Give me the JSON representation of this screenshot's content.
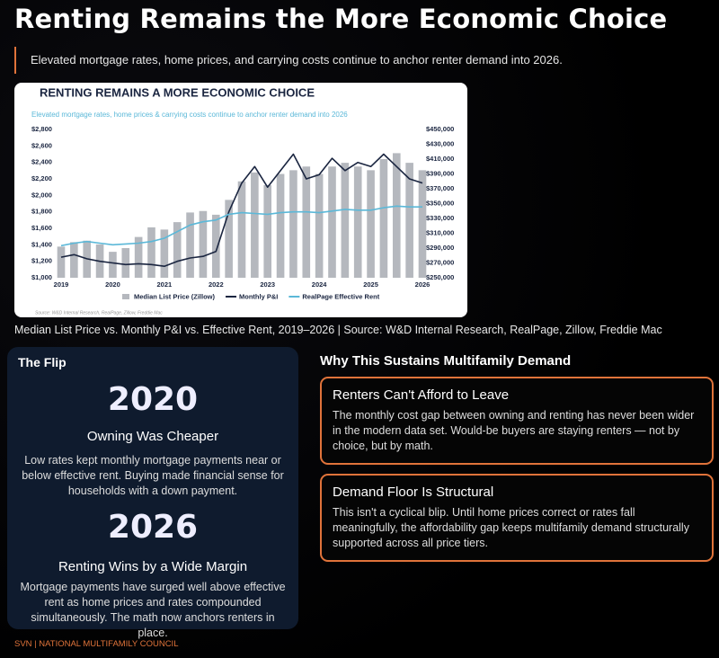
{
  "header": {
    "title": "Renting Remains the More Economic Choice",
    "subtitle": "Elevated mortgage rates, home prices, and carrying costs continue to anchor renter demand into 2026."
  },
  "chart_data": {
    "type": "bar",
    "title": "RENTING REMAINS A MORE ECONOMIC CHOICE",
    "subtitle": "Elevated mortgage rates, home prices & carrying costs continue to anchor renter demand into 2026",
    "source": "Source: W&D Internal Research, RealPage, Zillow, Freddie Mac",
    "categories": [
      "2019",
      null,
      null,
      null,
      "2020",
      null,
      null,
      null,
      "2021",
      null,
      null,
      null,
      "2022",
      null,
      null,
      null,
      "2023",
      null,
      null,
      null,
      "2024",
      null,
      null,
      null,
      "2025",
      null,
      null,
      null,
      "2026"
    ],
    "series": [
      {
        "name": "Median List Price (Zillow)",
        "color": "#b5b8be",
        "axis": "y2",
        "values": [
          292000,
          298000,
          300000,
          295000,
          285000,
          290000,
          305000,
          318000,
          315000,
          325000,
          338000,
          340000,
          335000,
          355000,
          380000,
          392000,
          375000,
          390000,
          395000,
          400000,
          390000,
          400000,
          405000,
          400000,
          395000,
          410000,
          418000,
          405000,
          395000
        ]
      },
      {
        "name": "Monthly P&I",
        "color": "#1a2540",
        "values": [
          1250,
          1280,
          1230,
          1200,
          1180,
          1160,
          1170,
          1160,
          1140,
          1200,
          1240,
          1260,
          1320,
          1800,
          2150,
          2350,
          2100,
          2300,
          2500,
          2200,
          2250,
          2450,
          2300,
          2400,
          2350,
          2500,
          2350,
          2200,
          2150
        ]
      },
      {
        "name": "RealPage Effective Rent",
        "color": "#5bb8d8",
        "values": [
          1390,
          1420,
          1440,
          1420,
          1400,
          1410,
          1420,
          1440,
          1480,
          1560,
          1640,
          1680,
          1700,
          1770,
          1790,
          1780,
          1770,
          1790,
          1800,
          1800,
          1790,
          1810,
          1830,
          1820,
          1820,
          1850,
          1870,
          1860,
          1860
        ]
      }
    ],
    "ylim": [
      1000,
      2800
    ],
    "yticks": [
      {
        "value": 1000,
        "label": "$1,000"
      },
      {
        "value": 1200,
        "label": "$1,200"
      },
      {
        "value": 1400,
        "label": "$1,400"
      },
      {
        "value": 1600,
        "label": "$1,600"
      },
      {
        "value": 1800,
        "label": "$1,800"
      },
      {
        "value": 2000,
        "label": "$2,000"
      },
      {
        "value": 2200,
        "label": "$2,200"
      },
      {
        "value": 2400,
        "label": "$2,400"
      },
      {
        "value": 2600,
        "label": "$2,600"
      },
      {
        "value": 2800,
        "label": "$2,800"
      }
    ],
    "y2lim": [
      250000,
      450000
    ],
    "y2ticks": [
      {
        "value": 250000,
        "label": "$250,000"
      },
      {
        "value": 270000,
        "label": "$270,000"
      },
      {
        "value": 290000,
        "label": "$290,000"
      },
      {
        "value": 310000,
        "label": "$310,000"
      },
      {
        "value": 330000,
        "label": "$330,000"
      },
      {
        "value": 350000,
        "label": "$350,000"
      },
      {
        "value": 370000,
        "label": "$370,000"
      },
      {
        "value": 390000,
        "label": "$390,000"
      },
      {
        "value": 410000,
        "label": "$410,000"
      },
      {
        "value": 430000,
        "label": "$430,000"
      },
      {
        "value": 450000,
        "label": "$450,000"
      }
    ],
    "legend": "bottom"
  },
  "caption": "Median List Price vs. Monthly P&I vs. Effective Rent, 2019–2026 | Source: W&D Internal Research, RealPage, Zillow, Freddie Mac",
  "flip": {
    "title": "The Flip",
    "items": [
      {
        "year": "2020",
        "heading": "Owning Was Cheaper",
        "body": "Low rates kept monthly mortgage payments near or below effective rent. Buying made financial sense for households with a down payment."
      },
      {
        "year": "2026",
        "heading": "Renting Wins by a Wide Margin",
        "body": "Mortgage payments have surged well above effective rent as home prices and rates compounded simultaneously. The math now anchors renters in place."
      }
    ]
  },
  "why": {
    "title": "Why This Sustains Multifamily Demand",
    "cards": [
      {
        "title": "Renters Can't Afford to Leave",
        "body": "The monthly cost gap between owning and renting has never been wider in the modern data set. Would-be buyers are staying renters — not by choice, but by math."
      },
      {
        "title": "Demand Floor Is Structural",
        "body": "This isn't a cyclical blip. Until home prices correct or rates fall meaningfully, the affordability gap keeps multifamily demand structurally supported across all price tiers."
      }
    ]
  },
  "footer": "SVN | NATIONAL MULTIFAMILY COUNCIL"
}
